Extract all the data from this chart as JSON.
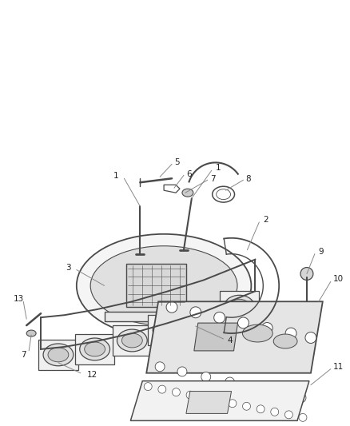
{
  "bg_color": "#ffffff",
  "line_color": "#4a4a4a",
  "label_color": "#222222",
  "callout_color": "#888888",
  "figsize": [
    4.38,
    5.33
  ],
  "dpi": 100,
  "label_fs": 7.5
}
